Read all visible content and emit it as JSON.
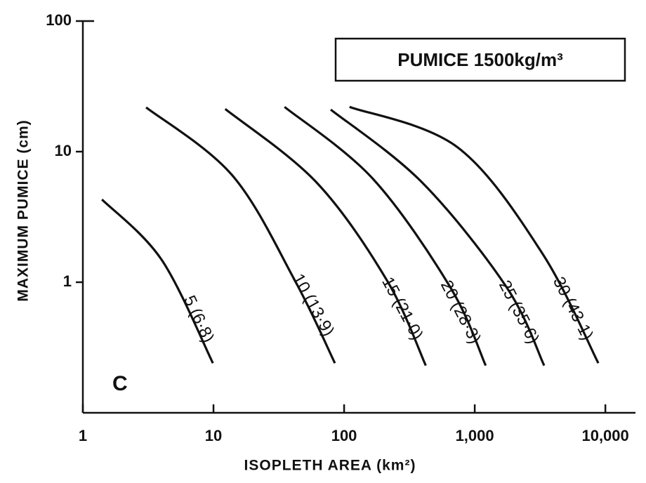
{
  "chart_data": {
    "type": "line",
    "x_label": "ISOPLETH AREA (km²)",
    "y_label": "MAXIMUM PUMICE (cm)",
    "annotations": [
      "PUMICE 1500kg/m³",
      "C"
    ],
    "xlog": true,
    "ylog": true,
    "xlim": [
      1,
      17000
    ],
    "ylim": [
      0.1,
      100
    ],
    "xticks": [
      1,
      10,
      100,
      {
        "value": 1000,
        "label": "1,000"
      },
      {
        "value": 10000,
        "label": "10,000"
      }
    ],
    "yticks": [
      1,
      10,
      100
    ],
    "series": [
      {
        "name": "5 (6·8)",
        "color": "#111",
        "x": [
          1.4,
          4.0,
          9.9
        ],
        "values": [
          4.3,
          1.49,
          0.24
        ]
      },
      {
        "name": "10 (13·9)",
        "color": "#111",
        "x": [
          3.05,
          13.9,
          42,
          85
        ],
        "values": [
          21.8,
          6.6,
          1.03,
          0.24
        ]
      },
      {
        "name": "15 (21·0)",
        "color": "#111",
        "x": [
          12.3,
          61.6,
          213,
          422
        ],
        "values": [
          21.2,
          5.8,
          1.03,
          0.23
        ]
      },
      {
        "name": "20 (28·3)",
        "color": "#111",
        "x": [
          35,
          166,
          652,
          1213
        ],
        "values": [
          22,
          6.2,
          0.91,
          0.23
        ]
      },
      {
        "name": "25 (35·6)",
        "color": "#111",
        "x": [
          79,
          396,
          1760,
          3400
        ],
        "values": [
          21,
          5.8,
          0.91,
          0.23
        ]
      },
      {
        "name": "30 (43·1)",
        "color": "#111",
        "x": [
          110,
          738,
          3270,
          8830
        ],
        "values": [
          22,
          10.8,
          1.68,
          0.24
        ]
      }
    ]
  }
}
